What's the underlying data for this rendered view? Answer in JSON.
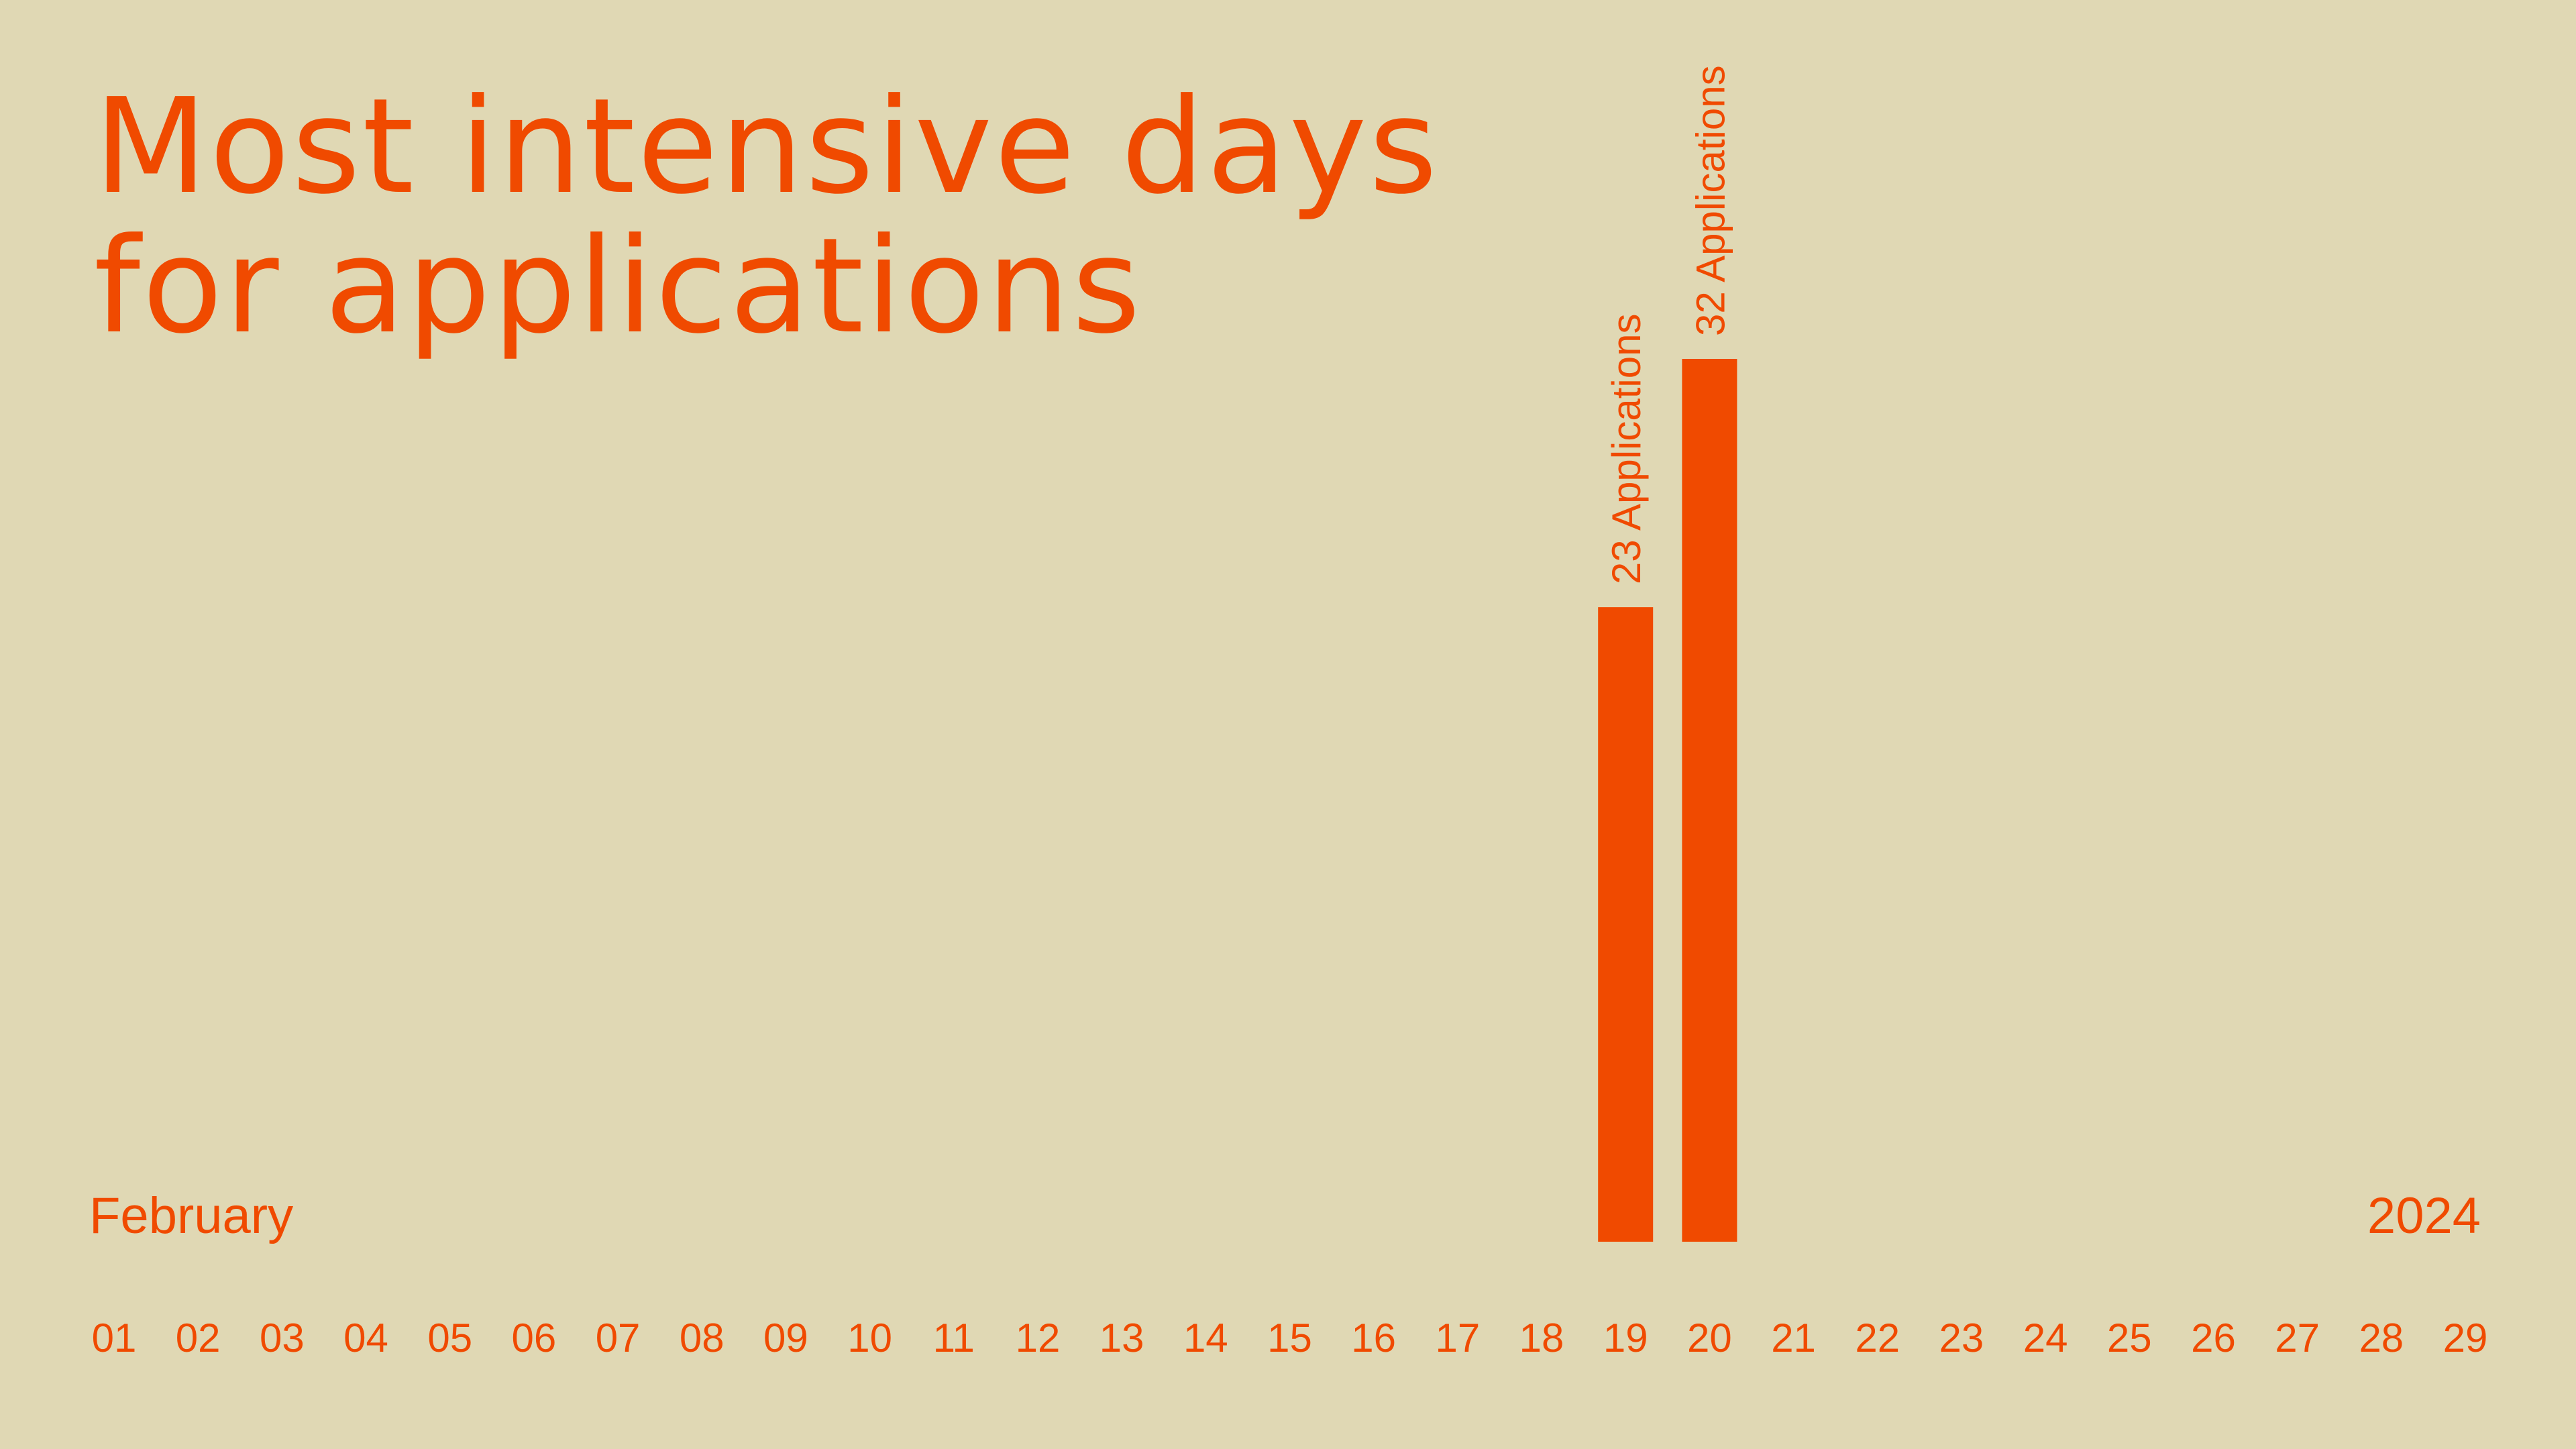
{
  "colors": {
    "background": "#e0d8b4",
    "accent": "#f04a00"
  },
  "title_lines": [
    "Most intensive days",
    "for applications"
  ],
  "month_label": "February",
  "year_label": "2024",
  "chart_data": {
    "type": "bar",
    "title": "Most intensive days for applications",
    "xlabel": "February",
    "ylabel": "",
    "grid": false,
    "legend": "none",
    "categories": [
      "01",
      "02",
      "03",
      "04",
      "05",
      "06",
      "07",
      "08",
      "09",
      "10",
      "11",
      "12",
      "13",
      "14",
      "15",
      "16",
      "17",
      "18",
      "19",
      "20",
      "21",
      "22",
      "23",
      "24",
      "25",
      "26",
      "27",
      "28",
      "29"
    ],
    "values": [
      null,
      null,
      null,
      null,
      null,
      null,
      null,
      null,
      null,
      null,
      null,
      null,
      null,
      null,
      null,
      null,
      null,
      null,
      23,
      32,
      null,
      null,
      null,
      null,
      null,
      null,
      null,
      null,
      null
    ],
    "data_labels": {
      "19": "23 Applications",
      "20": "32 Applications"
    },
    "ylim": [
      0,
      32
    ]
  }
}
